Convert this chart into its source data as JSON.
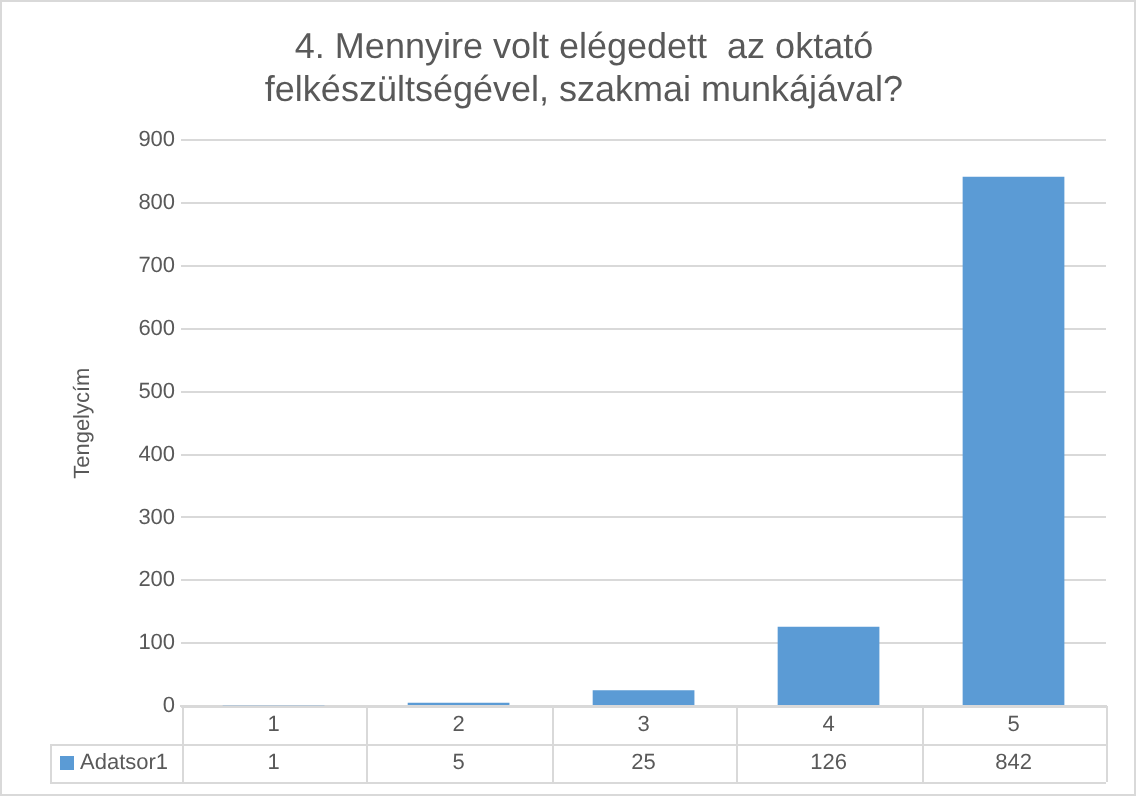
{
  "chart_data": {
    "type": "bar",
    "title": "4. Mennyire volt elégedett  az oktató felkészültségével, szakmai munkájával?",
    "ylabel": "Tengelycím",
    "categories": [
      "1",
      "2",
      "3",
      "4",
      "5"
    ],
    "series": [
      {
        "name": "Adatsor1",
        "color": "#5b9bd5",
        "values": [
          1,
          5,
          25,
          126,
          842
        ]
      }
    ],
    "ylim": [
      0,
      900
    ],
    "yticks": [
      0,
      100,
      200,
      300,
      400,
      500,
      600,
      700,
      800,
      900
    ],
    "grid": "y",
    "legend": "bottom",
    "data_labels": true
  }
}
